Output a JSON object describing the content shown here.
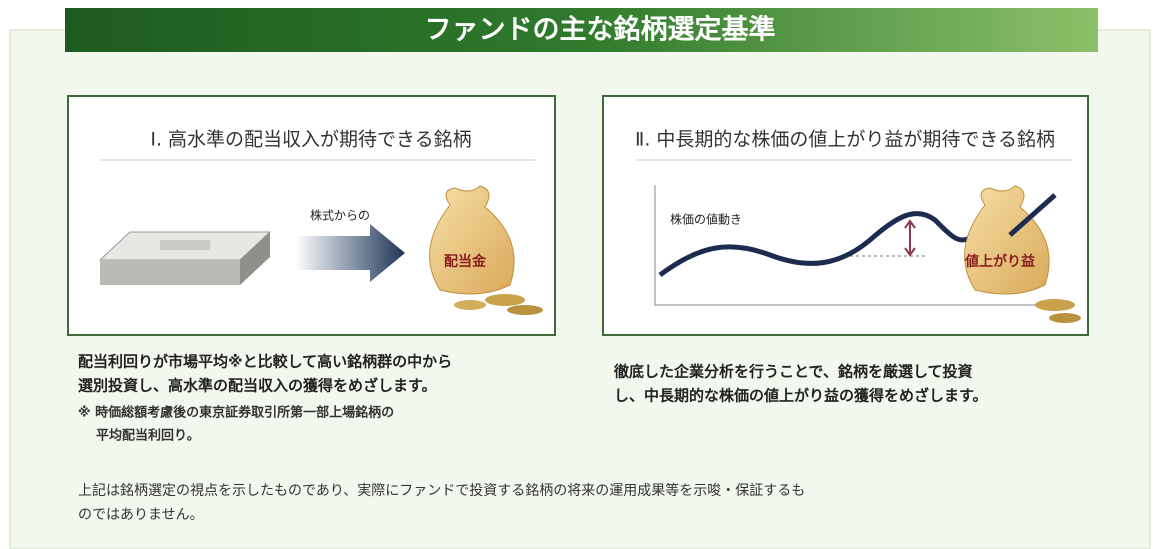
{
  "header": {
    "title": "ファンドの主な銘柄選定基準"
  },
  "panels": [
    {
      "title": "Ⅰ. 高水準の配当収入が期待できる銘柄",
      "labels": [
        "株式からの",
        "配当金"
      ],
      "description": [
        "配当利回りが市場平均※と比較して高い銘柄群の中から",
        "選別投資し、高水準の配当収入の獲得をめざします。"
      ],
      "note": [
        "※ 時価総額考慮後の東京証券取引所第一部上場銘柄の",
        "平均配当利回り。"
      ]
    },
    {
      "title": "Ⅱ. 中長期的な株価の値上がり益が期待できる銘柄",
      "labels": [
        "株価の値動き",
        "値上がり益"
      ],
      "description": [
        "徹底した企業分析を行うことで、銘柄を厳選して投資",
        "し、中長期的な株価の値上がり益の獲得をめざします。"
      ]
    }
  ],
  "footer": [
    "上記は銘柄選定の視点を示したものであり、実際にファンドで投資する銘柄の将来の運用成果等を示唆・保証するも",
    "のではありません。"
  ]
}
